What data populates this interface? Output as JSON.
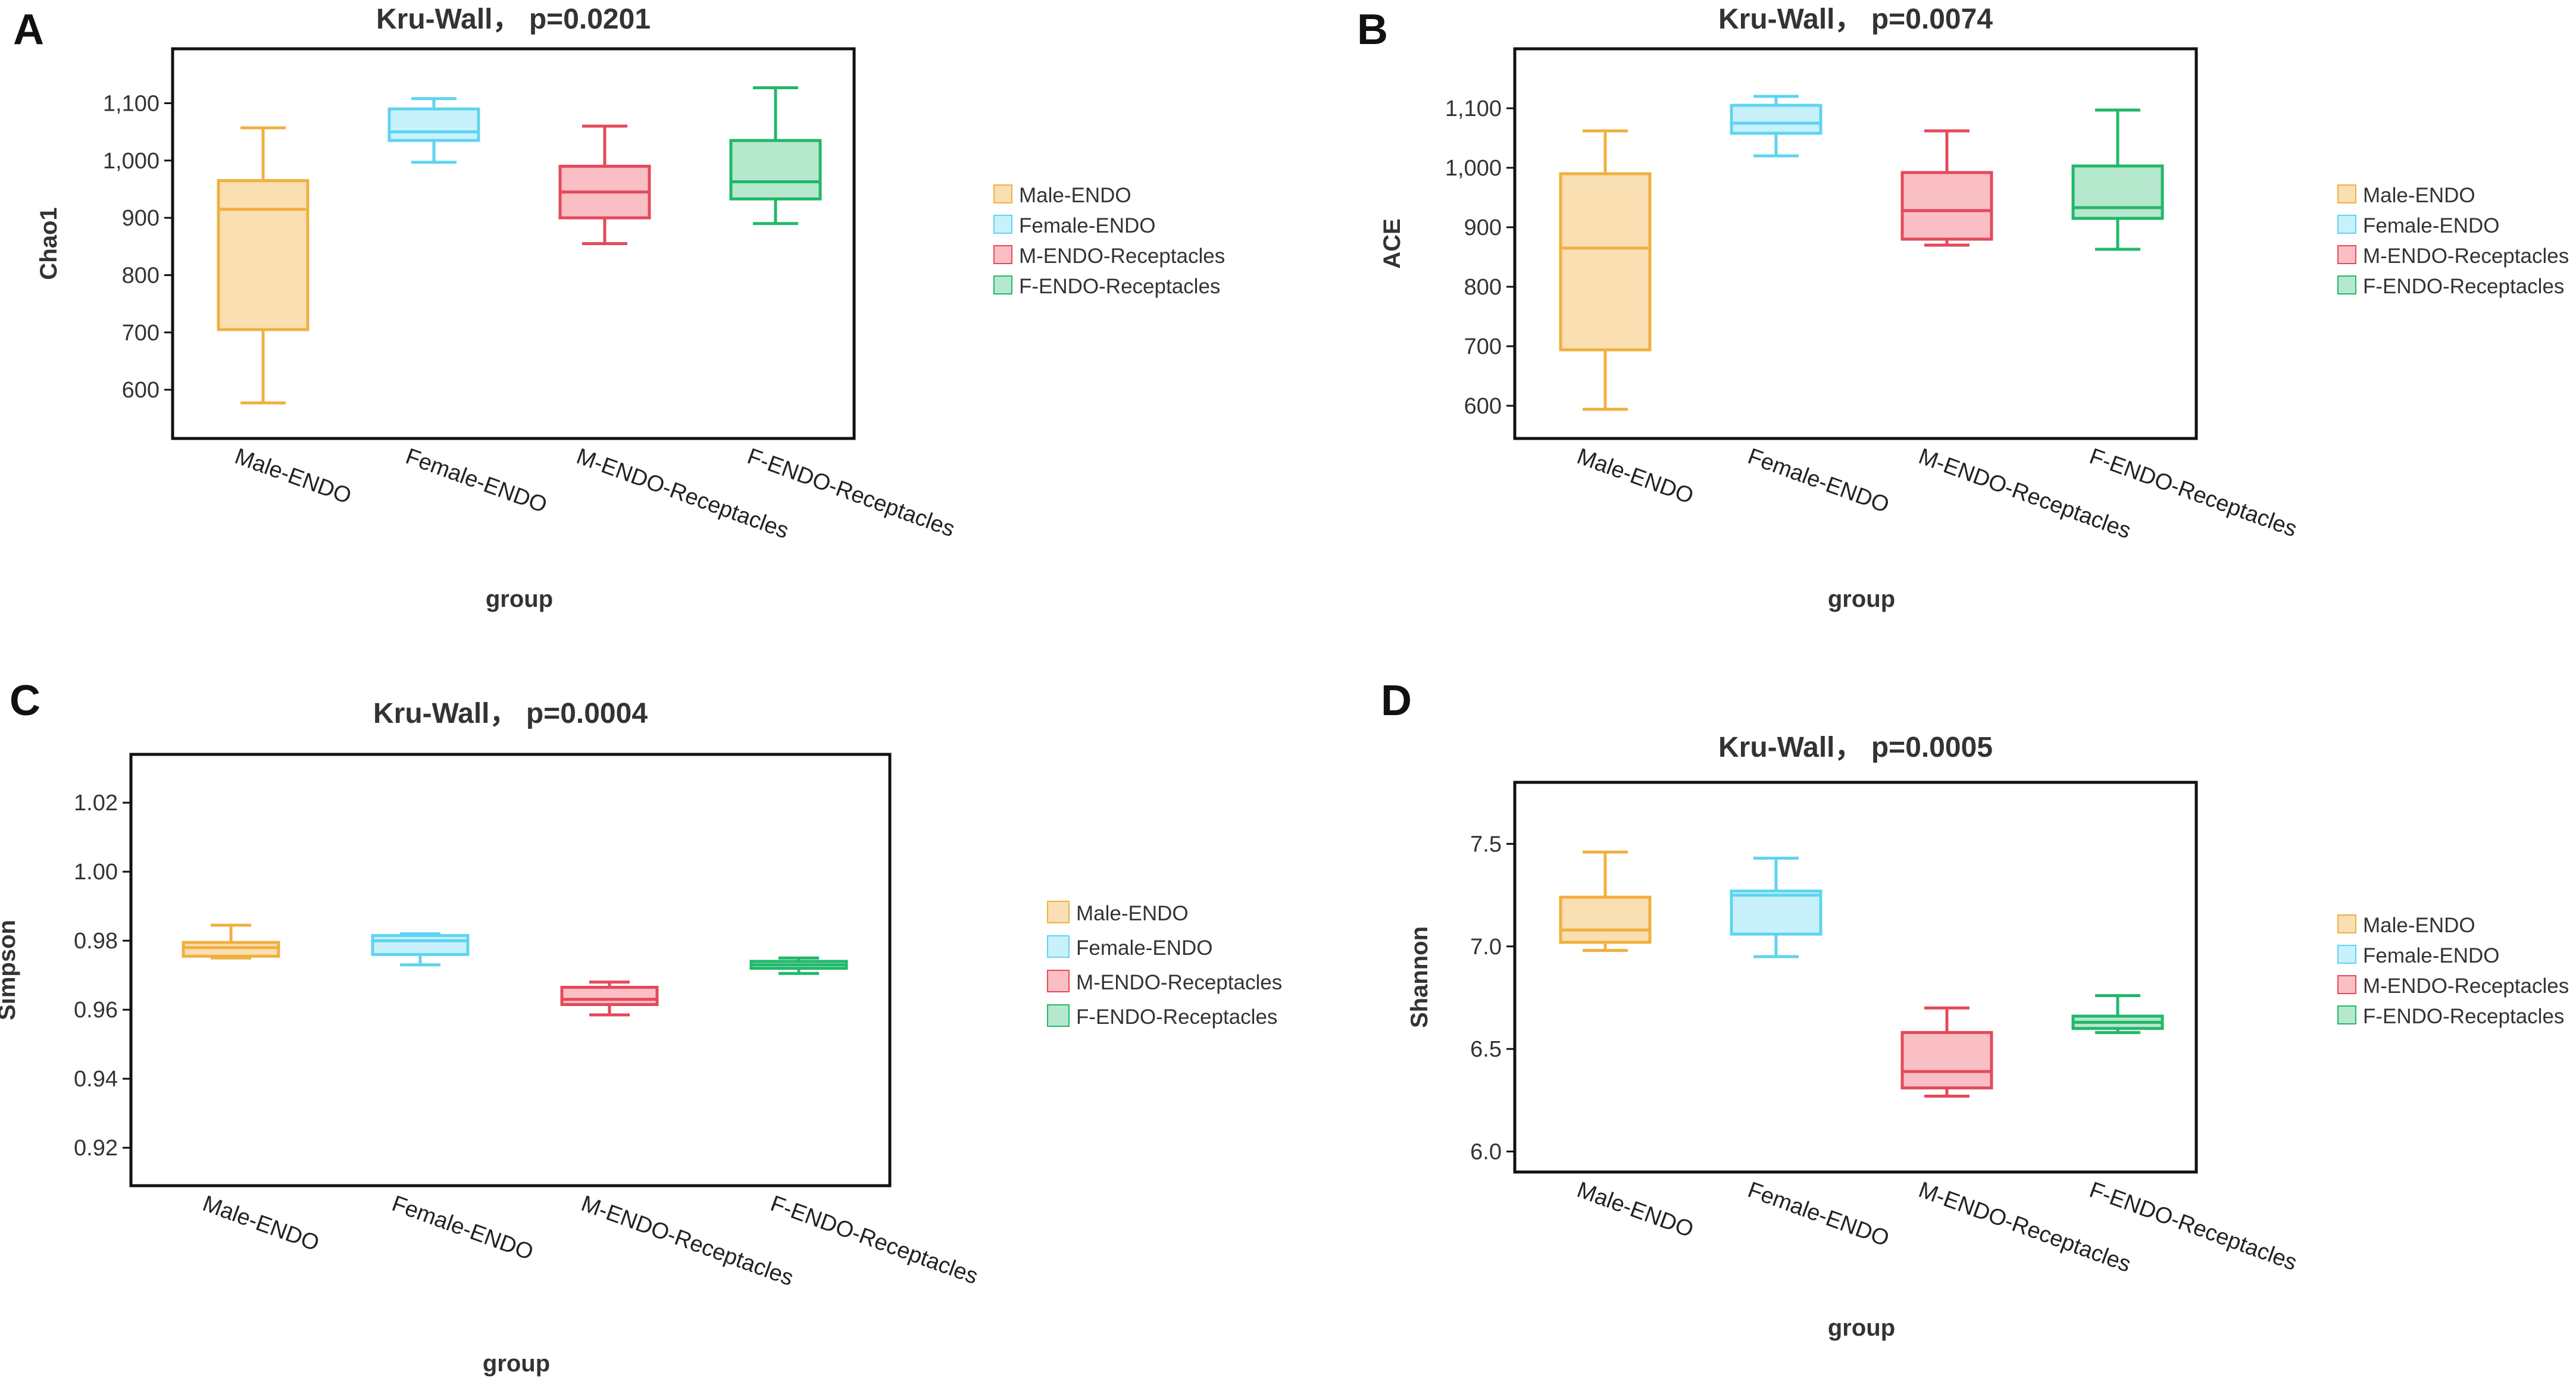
{
  "chart_data": [
    {
      "panel": "A",
      "type": "box",
      "title": "Kru-Wall， p=0.0201",
      "xlabel": "group",
      "ylabel": "Chao1",
      "ylim": [
        515,
        1195
      ],
      "yticks": [
        600,
        700,
        800,
        900,
        1000,
        1100
      ],
      "ytick_labels": [
        "600",
        "700",
        "800",
        "900",
        "1,000",
        "1,100"
      ],
      "categories": [
        "Male-ENDO",
        "Female-ENDO",
        "M-ENDO-Receptacles",
        "F-ENDO-Receptacles"
      ],
      "boxes": [
        {
          "min": 577,
          "q1": 705,
          "median": 915,
          "q3": 965,
          "max": 1057
        },
        {
          "min": 997,
          "q1": 1035,
          "median": 1050,
          "q3": 1090,
          "max": 1108
        },
        {
          "min": 855,
          "q1": 900,
          "median": 945,
          "q3": 990,
          "max": 1060
        },
        {
          "min": 890,
          "q1": 933,
          "median": 963,
          "q3": 1035,
          "max": 1127
        }
      ]
    },
    {
      "panel": "B",
      "type": "box",
      "title": "Kru-Wall， p=0.0074",
      "xlabel": "group",
      "ylabel": "ACE",
      "ylim": [
        545,
        1200
      ],
      "yticks": [
        600,
        700,
        800,
        900,
        1000,
        1100
      ],
      "ytick_labels": [
        "600",
        "700",
        "800",
        "900",
        "1,000",
        "1,100"
      ],
      "categories": [
        "Male-ENDO",
        "Female-ENDO",
        "M-ENDO-Receptacles",
        "F-ENDO-Receptacles"
      ],
      "boxes": [
        {
          "min": 594,
          "q1": 694,
          "median": 865,
          "q3": 990,
          "max": 1062
        },
        {
          "min": 1020,
          "q1": 1058,
          "median": 1075,
          "q3": 1105,
          "max": 1120
        },
        {
          "min": 870,
          "q1": 880,
          "median": 928,
          "q3": 992,
          "max": 1062
        },
        {
          "min": 863,
          "q1": 915,
          "median": 933,
          "q3": 1003,
          "max": 1097
        }
      ]
    },
    {
      "panel": "C",
      "type": "box",
      "title": "Kru-Wall， p=0.0004",
      "xlabel": "group",
      "ylabel": "Simpson",
      "ylim": [
        0.909,
        1.034
      ],
      "yticks": [
        0.92,
        0.94,
        0.96,
        0.98,
        1.0,
        1.02
      ],
      "ytick_labels": [
        "0.92",
        "0.94",
        "0.96",
        "0.98",
        "1.00",
        "1.02"
      ],
      "categories": [
        "Male-ENDO",
        "Female-ENDO",
        "M-ENDO-Receptacles",
        "F-ENDO-Receptacles"
      ],
      "boxes": [
        {
          "min": 0.975,
          "q1": 0.9755,
          "median": 0.978,
          "q3": 0.9795,
          "max": 0.9845
        },
        {
          "min": 0.973,
          "q1": 0.976,
          "median": 0.98,
          "q3": 0.9815,
          "max": 0.982
        },
        {
          "min": 0.9585,
          "q1": 0.9615,
          "median": 0.963,
          "q3": 0.9665,
          "max": 0.968
        },
        {
          "min": 0.9705,
          "q1": 0.972,
          "median": 0.973,
          "q3": 0.974,
          "max": 0.975
        }
      ]
    },
    {
      "panel": "D",
      "type": "box",
      "title": "Kru-Wall， p=0.0005",
      "xlabel": "group",
      "ylabel": "Shannon",
      "ylim": [
        5.9,
        7.8
      ],
      "yticks": [
        6.0,
        6.5,
        7.0,
        7.5
      ],
      "ytick_labels": [
        "6.0",
        "6.5",
        "7.0",
        "7.5"
      ],
      "categories": [
        "Male-ENDO",
        "Female-ENDO",
        "M-ENDO-Receptacles",
        "F-ENDO-Receptacles"
      ],
      "boxes": [
        {
          "min": 6.98,
          "q1": 7.02,
          "median": 7.08,
          "q3": 7.24,
          "max": 7.46
        },
        {
          "min": 6.95,
          "q1": 7.06,
          "median": 7.25,
          "q3": 7.27,
          "max": 7.43
        },
        {
          "min": 6.27,
          "q1": 6.31,
          "median": 6.39,
          "q3": 6.58,
          "max": 6.7
        },
        {
          "min": 6.58,
          "q1": 6.6,
          "median": 6.63,
          "q3": 6.66,
          "max": 6.76
        }
      ]
    }
  ],
  "legend": {
    "entries": [
      "Male-ENDO",
      "Female-ENDO",
      "M-ENDO-Receptacles",
      "F-ENDO-Receptacles"
    ]
  },
  "colors": {
    "strokes": [
      "#F0B040",
      "#5FD4F0",
      "#E44A5A",
      "#22B86A"
    ],
    "fills": [
      "#F9DFB2",
      "#C9F1FB",
      "#F9BFC5",
      "#B6E8CE"
    ]
  }
}
